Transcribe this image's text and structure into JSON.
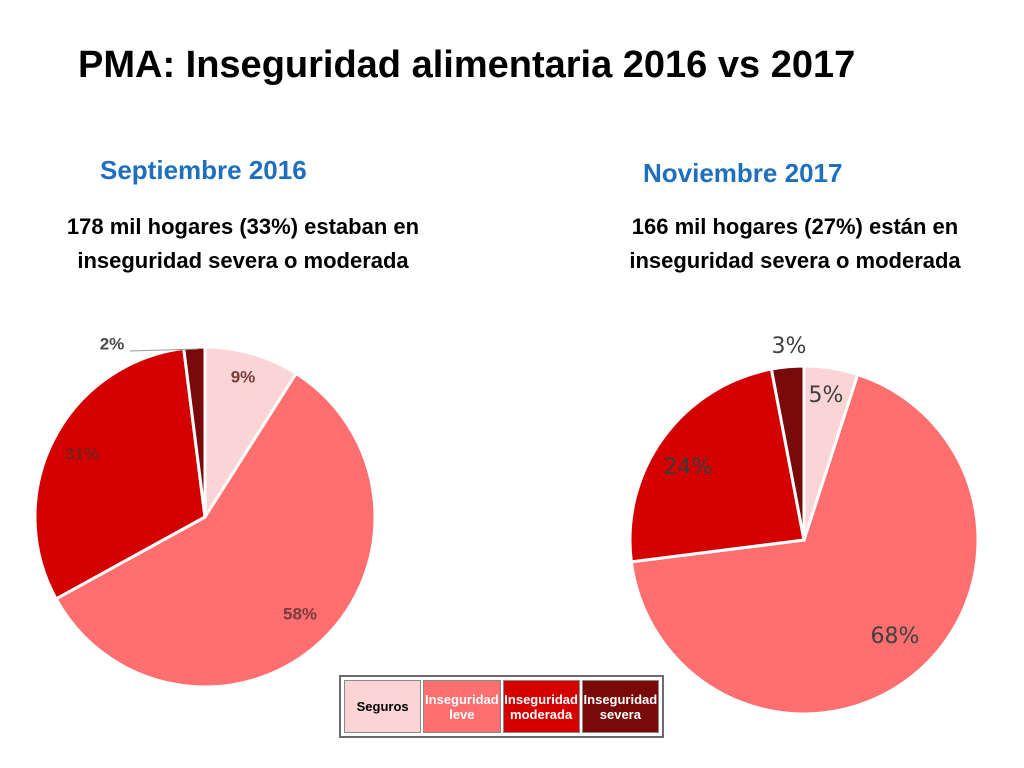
{
  "header": {
    "title": "PMA: Inseguridad alimentaria 2016 vs 2017"
  },
  "colors": {
    "seguros": "#fbd5d5",
    "leve": "#ff6f6f",
    "moderada": "#d40000",
    "severa": "#7a0a0a"
  },
  "legend": [
    {
      "label": "Seguros",
      "color": "#fbd5d5",
      "text_color": "#000000"
    },
    {
      "label": "Inseguridad leve",
      "color": "#ff6f6f",
      "text_color": "#ffffff"
    },
    {
      "label": "Inseguridad moderada",
      "color": "#d40000",
      "text_color": "#ffffff"
    },
    {
      "label": "Inseguridad severa",
      "color": "#7a0a0a",
      "text_color": "#ffffff"
    }
  ],
  "panels": [
    {
      "title": "Septiembre 2016",
      "subtitle_line1": "178 mil hogares (33%) estaban en",
      "subtitle_line2": "inseguridad severa o moderada"
    },
    {
      "title": "Noviembre 2017",
      "subtitle_line1": "166 mil hogares (27%) están en",
      "subtitle_line2": "inseguridad severa o moderada"
    }
  ],
  "chart_data": [
    {
      "type": "pie",
      "title": "Septiembre 2016",
      "categories": [
        "Seguros",
        "Inseguridad leve",
        "Inseguridad moderada",
        "Inseguridad severa"
      ],
      "values": [
        9,
        58,
        31,
        2
      ],
      "labels": [
        "9%",
        "58%",
        "31%",
        "2%"
      ]
    },
    {
      "type": "pie",
      "title": "Noviembre 2017",
      "categories": [
        "Seguros",
        "Inseguridad leve",
        "Inseguridad moderada",
        "Inseguridad severa"
      ],
      "values": [
        5,
        68,
        24,
        3
      ],
      "labels": [
        "5%",
        "68%",
        "24%",
        "3%"
      ]
    }
  ]
}
